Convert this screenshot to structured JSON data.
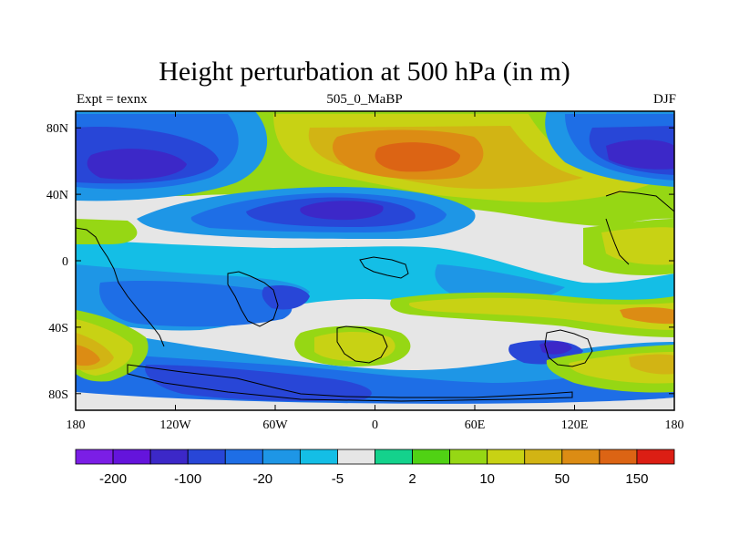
{
  "title": "Height perturbation at 500 hPa (in m)",
  "subtitle_left": "Expt = texnx",
  "subtitle_center": "505_0_MaBP",
  "subtitle_right": "DJF",
  "map": {
    "projection": "cylindrical-equidistant",
    "lon_range": [
      -180,
      180
    ],
    "lat_range": [
      -90,
      90
    ],
    "x_ticks": [
      {
        "value": -180,
        "label": "180"
      },
      {
        "value": -120,
        "label": "120W"
      },
      {
        "value": -60,
        "label": "60W"
      },
      {
        "value": 0,
        "label": "0"
      },
      {
        "value": 60,
        "label": "60E"
      },
      {
        "value": 120,
        "label": "120E"
      },
      {
        "value": 180,
        "label": "180"
      }
    ],
    "y_ticks": [
      {
        "value": 80,
        "label": "80N"
      },
      {
        "value": 40,
        "label": "40N"
      },
      {
        "value": 0,
        "label": "0"
      },
      {
        "value": -40,
        "label": "40S"
      },
      {
        "value": -80,
        "label": "80S"
      }
    ]
  },
  "colorbar": {
    "colors": [
      "#7b1ee6",
      "#6414dc",
      "#3c28c8",
      "#2846d7",
      "#1e6ee6",
      "#1e96e6",
      "#14bee6",
      "#e6e6e6",
      "#14d28c",
      "#50d214",
      "#96d714",
      "#c8d214",
      "#d2b414",
      "#dc8c14",
      "#dc6414",
      "#dc1e14"
    ],
    "tick_labels": [
      {
        "after_box": 1,
        "label": "-200"
      },
      {
        "after_box": 3,
        "label": "-100"
      },
      {
        "after_box": 5,
        "label": "-20"
      },
      {
        "after_box": 7,
        "label": "-5"
      },
      {
        "after_box": 9,
        "label": "2"
      },
      {
        "after_box": 11,
        "label": "10"
      },
      {
        "after_box": 13,
        "label": "50"
      },
      {
        "after_box": 15,
        "label": "150"
      }
    ]
  }
}
